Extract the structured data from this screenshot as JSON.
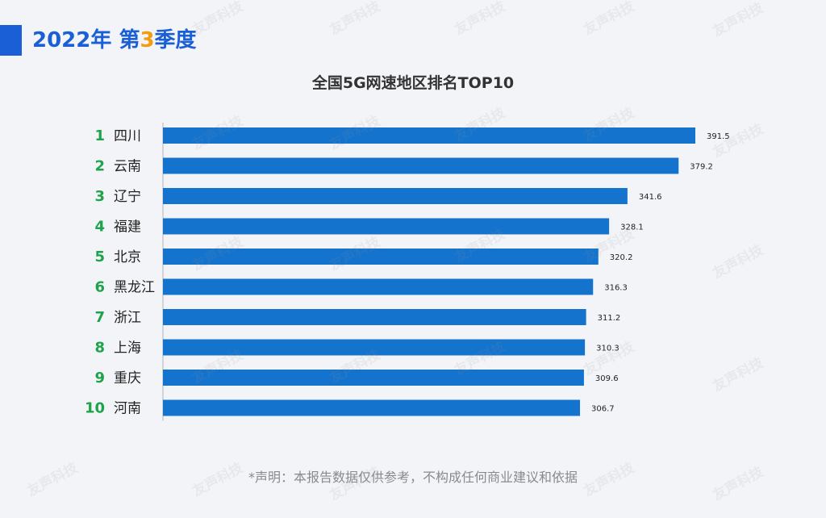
{
  "header": {
    "year_text": "2022年",
    "quarter_prefix": "第",
    "quarter_num": "3",
    "quarter_suffix": "季度"
  },
  "watermark": "友声科技",
  "footer": {
    "disclaimer": "*声明：本报告数据仅供参考，不构成任何商业建议和依据"
  },
  "colors": {
    "bar": "#1473cc",
    "rank": "#1fa34a",
    "header": "#1a5fd6",
    "accent": "#f39c12"
  },
  "chart_data": {
    "type": "bar",
    "orientation": "horizontal",
    "title": "全国5G网速地区排名TOP10",
    "ranks": [
      "1",
      "2",
      "3",
      "4",
      "5",
      "6",
      "7",
      "8",
      "9",
      "10"
    ],
    "categories": [
      "四川",
      "云南",
      "辽宁",
      "福建",
      "北京",
      "黑龙江",
      "浙江",
      "上海",
      "重庆",
      "河南"
    ],
    "values": [
      391.5,
      379.2,
      341.6,
      328.1,
      320.2,
      316.3,
      311.2,
      310.3,
      309.6,
      306.7
    ],
    "value_labels": [
      "391.5",
      "379.2",
      "341.6",
      "328.1",
      "320.2",
      "316.3",
      "311.2",
      "310.3",
      "309.6",
      "306.7"
    ],
    "xlim": [
      0,
      391.5
    ],
    "grid": false,
    "legend": "none"
  }
}
